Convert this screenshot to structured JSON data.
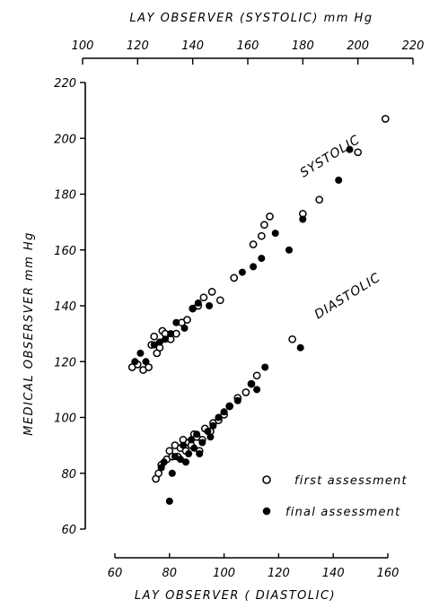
{
  "chart_data": {
    "type": "scatter",
    "title": "",
    "top_axis": {
      "label": "LAY  OBSERVER  (SYSTOLIC) mm Hg",
      "range": [
        100,
        220
      ],
      "ticks": [
        100,
        120,
        140,
        160,
        180,
        200,
        220
      ]
    },
    "bottom_axis": {
      "label": "LAY  OBSERVER  ( DIASTOLIC)",
      "range": [
        60,
        160
      ],
      "ticks": [
        60,
        80,
        100,
        120,
        140,
        160
      ]
    },
    "left_axis": {
      "label": "MEDICAL  OBSERSVER   mm Hg",
      "range": [
        60,
        220
      ],
      "ticks": [
        60,
        80,
        100,
        120,
        140,
        160,
        180,
        200,
        220
      ]
    },
    "annotations": {
      "systolic": "SYSTOLIC",
      "diastolic": "DIASTOLIC"
    },
    "legend": {
      "position": "bottom-right",
      "entries": [
        {
          "name": "first assessment",
          "marker": "open-circle"
        },
        {
          "name": "final assessment",
          "marker": "filled-circle"
        }
      ]
    },
    "series": [
      {
        "name": "first assessment",
        "group": "systolic",
        "x": [
          118,
          120,
          122,
          124,
          125,
          126,
          127,
          128,
          129,
          130,
          132,
          134,
          136,
          138,
          140,
          142,
          144,
          147,
          150,
          155,
          162,
          165,
          166,
          168,
          180,
          186,
          200,
          210
        ],
        "y": [
          118,
          119,
          117,
          118,
          126,
          129,
          123,
          125,
          131,
          130,
          128,
          130,
          134,
          135,
          139,
          140,
          143,
          145,
          142,
          150,
          162,
          165,
          169,
          172,
          173,
          178,
          195,
          207
        ]
      },
      {
        "name": "final assessment",
        "group": "systolic",
        "x": [
          119,
          121,
          123,
          126,
          128,
          130,
          132,
          134,
          137,
          140,
          142,
          146,
          158,
          162,
          165,
          170,
          175,
          180,
          193,
          197
        ],
        "y": [
          120,
          123,
          120,
          126,
          127,
          128,
          130,
          134,
          132,
          139,
          141,
          140,
          152,
          154,
          157,
          166,
          160,
          171,
          185,
          196
        ]
      },
      {
        "name": "first assessment",
        "group": "diastolic",
        "x": [
          75,
          76,
          77,
          79,
          80,
          81,
          82,
          83,
          84,
          85,
          86,
          87,
          88,
          89,
          90,
          91,
          92,
          93,
          95,
          96,
          98,
          100,
          102,
          105,
          108,
          110,
          112,
          125
        ],
        "y": [
          78,
          80,
          83,
          85,
          88,
          86,
          90,
          86,
          89,
          92,
          88,
          91,
          90,
          94,
          93,
          88,
          92,
          96,
          95,
          98,
          99,
          101,
          104,
          107,
          109,
          112,
          115,
          128
        ]
      },
      {
        "name": "final assessment",
        "group": "diastolic",
        "x": [
          77,
          78,
          80,
          81,
          82,
          84,
          85,
          86,
          87,
          88,
          89,
          90,
          91,
          92,
          94,
          95,
          96,
          98,
          100,
          102,
          105,
          110,
          112,
          115,
          128
        ],
        "y": [
          82,
          84,
          70,
          80,
          86,
          85,
          90,
          84,
          87,
          92,
          89,
          94,
          87,
          91,
          95,
          93,
          97,
          100,
          102,
          104,
          106,
          112,
          110,
          118,
          125
        ]
      }
    ]
  }
}
